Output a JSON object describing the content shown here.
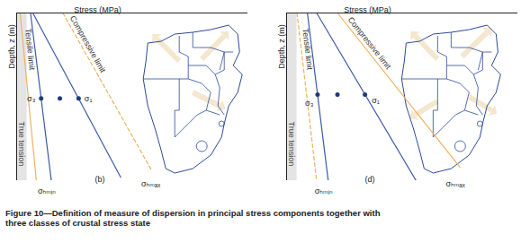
{
  "caption": "Figure 10—Definition of measure of dispersion in principal stress components together with three classes of crustal stress state",
  "chart_data": [
    {
      "type": "line",
      "xlabel": "Stress (MPa)",
      "ylabel": "Depth, z (m)",
      "xlim": [
        0,
        100
      ],
      "ylim": [
        100,
        0
      ],
      "tick_labels": false,
      "grid": false,
      "regions": [
        {
          "x1": 0,
          "x2": 4.5,
          "label": "True tension",
          "color": "#e4e4e4"
        }
      ],
      "series": [
        {
          "name": "Tensile limit",
          "color": "#efb25e",
          "line_style": "solid",
          "x": [
            1.5,
            8.5
          ],
          "y": [
            0,
            100
          ]
        },
        {
          "color": "#3c5aa6",
          "line_style": "solid",
          "x": [
            6,
            15
          ],
          "y": [
            0,
            100
          ]
        },
        {
          "color": "#3c5aa6",
          "line_style": "solid",
          "x": [
            7,
            45
          ],
          "y": [
            0,
            98
          ]
        },
        {
          "name": "Compressive limit",
          "color": "#efb25e",
          "line_style": "dashed",
          "x": [
            20,
            58
          ],
          "y": [
            0,
            93
          ]
        },
        {
          "type": "scatter",
          "marker": "circle",
          "color": "#1f3a78",
          "x": [
            10.6,
            18.7,
            26.8
          ],
          "y": [
            51,
            51,
            51
          ]
        }
      ],
      "annotations": [
        {
          "text": "σ₃",
          "x": 6.3,
          "y": 51
        },
        {
          "text": "σ₁",
          "x": 31,
          "y": 51
        },
        {
          "text": "σₕₘᵢₙ",
          "x": 13,
          "y": 106
        },
        {
          "text": "σₕₘₐₓ",
          "x": 58,
          "y": 102
        },
        {
          "text": "(b)",
          "x": 36,
          "y": 99
        }
      ]
    },
    {
      "type": "line",
      "xlabel": "Stress (MPa)",
      "ylabel": "Depth, z (m)",
      "xlim": [
        0,
        100
      ],
      "ylim": [
        100,
        0
      ],
      "tick_labels": false,
      "grid": false,
      "regions": [
        {
          "x1": 0,
          "x2": 4.5,
          "label": "True tension",
          "color": "#e4e4e4"
        }
      ],
      "series": [
        {
          "name": "Tensile limit",
          "color": "#efb25e",
          "line_style": "dashed",
          "x": [
            4.5,
            13
          ],
          "y": [
            0,
            100
          ]
        },
        {
          "color": "#3c5aa6",
          "line_style": "solid",
          "x": [
            9,
            18
          ],
          "y": [
            0,
            100
          ]
        },
        {
          "color": "#3c5aa6",
          "line_style": "solid",
          "x": [
            13,
            56
          ],
          "y": [
            0,
            100
          ]
        },
        {
          "name": "Compressive limit",
          "color": "#efb25e",
          "line_style": "solid",
          "x": [
            22,
            75
          ],
          "y": [
            0,
            92
          ]
        },
        {
          "type": "scatter",
          "marker": "circle",
          "color": "#1f3a78",
          "x": [
            13.4,
            22,
            33.9
          ],
          "y": [
            48.7,
            48.7,
            48.7
          ]
        }
      ],
      "annotations": [
        {
          "text": "σ₃",
          "x": 9.8,
          "y": 54
        },
        {
          "text": "σ₁",
          "x": 38.5,
          "y": 52
        },
        {
          "text": "σₕₘᵢₙ",
          "x": 16,
          "y": 106
        },
        {
          "text": "σₕₘₐₓ",
          "x": 73,
          "y": 102
        },
        {
          "text": "(d)",
          "x": 36,
          "y": 99
        }
      ]
    }
  ]
}
